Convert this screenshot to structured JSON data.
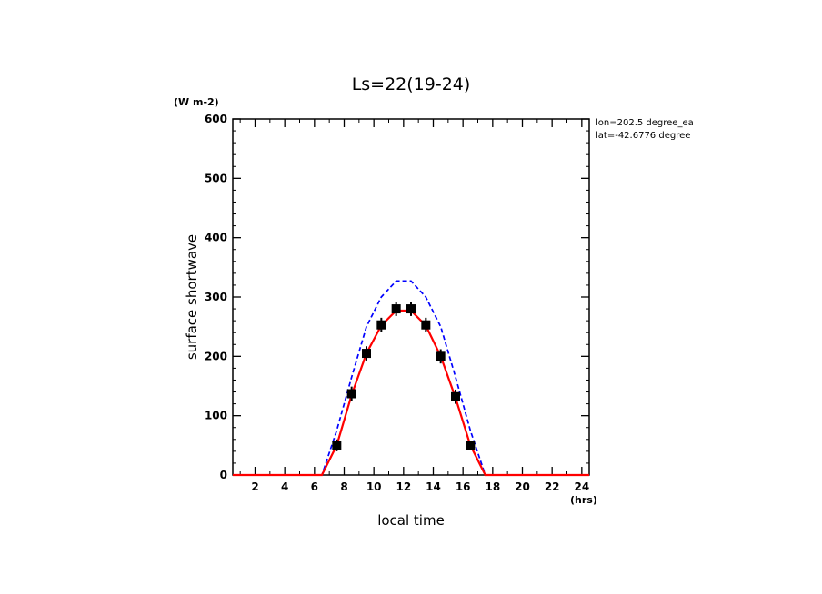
{
  "chart_data": {
    "type": "line",
    "title": "Ls=22(19-24)",
    "xlabel": "local time",
    "ylabel": "surface shortwave",
    "x_unit": "(hrs)",
    "y_unit": "(W m-2)",
    "annotations": [
      "lon=202.5 degree_ea",
      "lat=-42.6776 degree"
    ],
    "xlim": [
      0.5,
      24.5
    ],
    "ylim": [
      0,
      600
    ],
    "x_ticks": [
      2,
      4,
      6,
      8,
      10,
      12,
      14,
      16,
      18,
      20,
      22,
      24
    ],
    "y_ticks": [
      0,
      100,
      200,
      300,
      400,
      500,
      600
    ],
    "grid": false,
    "series": [
      {
        "style": "dashed",
        "color": "#0000ff",
        "x": [
          0.5,
          1.5,
          2.5,
          3.5,
          4.5,
          5.5,
          6.5,
          7.5,
          8.5,
          9.5,
          10.5,
          11.5,
          12.5,
          13.5,
          14.5,
          15.5,
          16.5,
          17.5,
          18.5,
          19.5,
          20.5,
          21.5,
          22.5,
          23.5,
          24.5
        ],
        "y": [
          0,
          0,
          0,
          0,
          0,
          0,
          0,
          75,
          165,
          250,
          300,
          327,
          327,
          300,
          250,
          165,
          75,
          0,
          0,
          0,
          0,
          0,
          0,
          0,
          0
        ]
      },
      {
        "style": "solid",
        "color": "#ff0000",
        "x": [
          0.5,
          1.5,
          2.5,
          3.5,
          4.5,
          5.5,
          6.5,
          7.5,
          8.5,
          9.5,
          10.5,
          11.5,
          12.5,
          13.5,
          14.5,
          15.5,
          16.5,
          17.5,
          18.5,
          19.5,
          20.5,
          21.5,
          22.5,
          23.5,
          24.5
        ],
        "y": [
          0,
          0,
          0,
          0,
          0,
          0,
          0,
          50,
          135,
          205,
          252,
          277,
          277,
          252,
          200,
          130,
          50,
          0,
          0,
          0,
          0,
          0,
          0,
          0,
          0
        ]
      },
      {
        "style": "markers",
        "color": "#000000",
        "x": [
          7.5,
          8.5,
          9.5,
          10.5,
          11.5,
          12.5,
          13.5,
          14.5,
          15.5,
          16.5
        ],
        "y": [
          50,
          137,
          205,
          253,
          280,
          280,
          253,
          200,
          132,
          50
        ],
        "err": [
          10,
          12,
          12,
          12,
          12,
          12,
          12,
          12,
          12,
          8
        ]
      }
    ]
  }
}
